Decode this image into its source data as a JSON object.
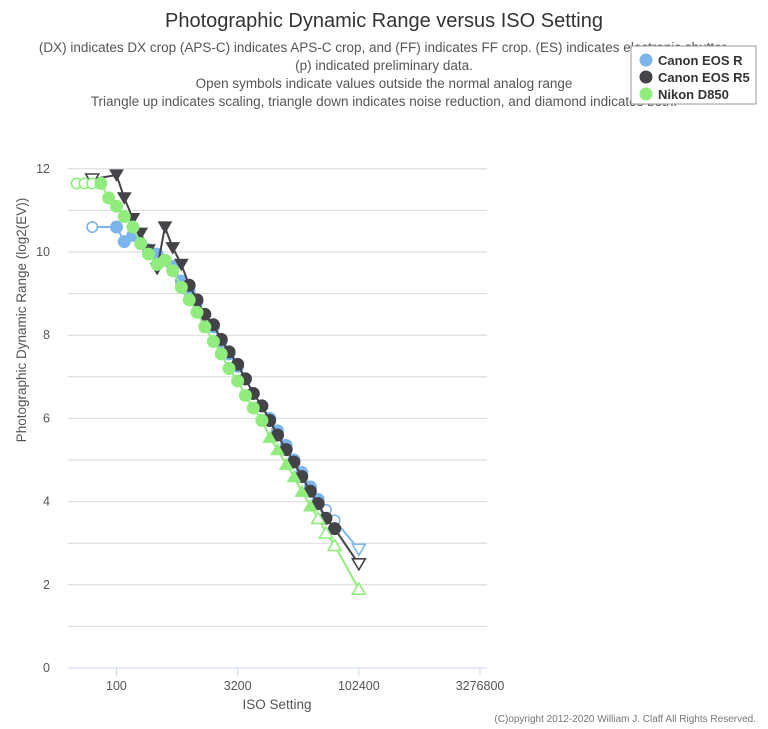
{
  "chart_data": {
    "type": "line",
    "title": "Photographic Dynamic Range versus ISO Setting",
    "subtitle_lines": [
      "(DX) indicates DX crop (APS-C) indicates APS-C crop, and (FF) indicates FF crop. (ES) indicates electronic shutter.",
      "(p) indicated preliminary data.",
      "Open symbols indicate values outside the normal analog range",
      "Triangle up indicates scaling, triangle down indicates noise reduction, and diamond indicates both."
    ],
    "xlabel": "ISO Setting",
    "ylabel": "Photographic Dynamic Range (log2(EV))",
    "x_scale": "log2",
    "xlim": [
      25,
      4000000
    ],
    "ylim": [
      0,
      12.5
    ],
    "x_ticks": [
      100,
      3200,
      102400,
      3276800
    ],
    "x_tick_labels": [
      "100",
      "3200",
      "102400",
      "3276800"
    ],
    "y_ticks": [
      0,
      2,
      4,
      6,
      8,
      10,
      12
    ],
    "y_tick_labels": [
      "0",
      "2",
      "4",
      "6",
      "8",
      "10",
      "12"
    ],
    "grid": true,
    "legend_position": "top-right",
    "credit": "(C)opyright 2012-2020 William J. Claff All Rights Reserved.",
    "series": [
      {
        "name": "Canon EOS R",
        "color": "#7cb5ec",
        "points": [
          {
            "x": 50,
            "y": 10.6,
            "m": "open-circle"
          },
          {
            "x": 100,
            "y": 10.6,
            "m": "circle"
          },
          {
            "x": 125,
            "y": 10.25,
            "m": "circle"
          },
          {
            "x": 160,
            "y": 10.4,
            "m": "circle"
          },
          {
            "x": 200,
            "y": 10.2,
            "m": "circle"
          },
          {
            "x": 250,
            "y": 10.05,
            "m": "circle"
          },
          {
            "x": 320,
            "y": 9.95,
            "m": "circle"
          },
          {
            "x": 400,
            "y": 9.8,
            "m": "circle"
          },
          {
            "x": 500,
            "y": 9.65,
            "m": "circle"
          },
          {
            "x": 640,
            "y": 9.3,
            "m": "circle"
          },
          {
            "x": 800,
            "y": 9.05,
            "m": "circle"
          },
          {
            "x": 1000,
            "y": 8.8,
            "m": "circle"
          },
          {
            "x": 1250,
            "y": 8.5,
            "m": "circle"
          },
          {
            "x": 1600,
            "y": 8.2,
            "m": "circle"
          },
          {
            "x": 2000,
            "y": 7.85,
            "m": "circle"
          },
          {
            "x": 2500,
            "y": 7.55,
            "m": "circle"
          },
          {
            "x": 3200,
            "y": 7.25,
            "m": "circle"
          },
          {
            "x": 4000,
            "y": 6.95,
            "m": "circle"
          },
          {
            "x": 5000,
            "y": 6.6,
            "m": "circle"
          },
          {
            "x": 6400,
            "y": 6.3,
            "m": "circle"
          },
          {
            "x": 8000,
            "y": 6.0,
            "m": "circle"
          },
          {
            "x": 10000,
            "y": 5.7,
            "m": "circle"
          },
          {
            "x": 12800,
            "y": 5.35,
            "m": "circle"
          },
          {
            "x": 16000,
            "y": 5.0,
            "m": "circle"
          },
          {
            "x": 20000,
            "y": 4.7,
            "m": "circle"
          },
          {
            "x": 25600,
            "y": 4.35,
            "m": "circle"
          },
          {
            "x": 32000,
            "y": 4.05,
            "m": "circle"
          },
          {
            "x": 40000,
            "y": 3.8,
            "m": "open-circle"
          },
          {
            "x": 51200,
            "y": 3.55,
            "m": "open-circle"
          },
          {
            "x": 102400,
            "y": 2.85,
            "m": "open-triangle-down"
          }
        ]
      },
      {
        "name": "Canon EOS R5",
        "color": "#434348",
        "points": [
          {
            "x": 50,
            "y": 11.75,
            "m": "open-triangle-down"
          },
          {
            "x": 100,
            "y": 11.85,
            "m": "triangle-down"
          },
          {
            "x": 125,
            "y": 11.3,
            "m": "triangle-down"
          },
          {
            "x": 160,
            "y": 10.8,
            "m": "triangle-down"
          },
          {
            "x": 200,
            "y": 10.45,
            "m": "triangle-down"
          },
          {
            "x": 250,
            "y": 10.05,
            "m": "triangle-down"
          },
          {
            "x": 320,
            "y": 9.6,
            "m": "triangle-down"
          },
          {
            "x": 400,
            "y": 10.6,
            "m": "triangle-down"
          },
          {
            "x": 500,
            "y": 10.1,
            "m": "triangle-down"
          },
          {
            "x": 640,
            "y": 9.7,
            "m": "triangle-down"
          },
          {
            "x": 800,
            "y": 9.2,
            "m": "circle"
          },
          {
            "x": 1000,
            "y": 8.85,
            "m": "circle"
          },
          {
            "x": 1250,
            "y": 8.5,
            "m": "circle"
          },
          {
            "x": 1600,
            "y": 8.25,
            "m": "circle"
          },
          {
            "x": 2000,
            "y": 7.9,
            "m": "circle"
          },
          {
            "x": 2500,
            "y": 7.6,
            "m": "circle"
          },
          {
            "x": 3200,
            "y": 7.3,
            "m": "circle"
          },
          {
            "x": 4000,
            "y": 6.95,
            "m": "circle"
          },
          {
            "x": 5000,
            "y": 6.6,
            "m": "circle"
          },
          {
            "x": 6400,
            "y": 6.3,
            "m": "circle"
          },
          {
            "x": 8000,
            "y": 5.95,
            "m": "circle"
          },
          {
            "x": 10000,
            "y": 5.6,
            "m": "circle"
          },
          {
            "x": 12800,
            "y": 5.25,
            "m": "circle"
          },
          {
            "x": 16000,
            "y": 4.95,
            "m": "circle"
          },
          {
            "x": 20000,
            "y": 4.6,
            "m": "circle"
          },
          {
            "x": 25600,
            "y": 4.25,
            "m": "circle"
          },
          {
            "x": 32000,
            "y": 3.95,
            "m": "circle"
          },
          {
            "x": 40000,
            "y": 3.6,
            "m": "circle"
          },
          {
            "x": 51200,
            "y": 3.35,
            "m": "circle"
          },
          {
            "x": 102400,
            "y": 2.5,
            "m": "open-triangle-down"
          }
        ]
      },
      {
        "name": "Nikon D850",
        "color": "#90ed7d",
        "points": [
          {
            "x": 32,
            "y": 11.65,
            "m": "open-circle"
          },
          {
            "x": 40,
            "y": 11.65,
            "m": "open-circle"
          },
          {
            "x": 50,
            "y": 11.65,
            "m": "open-circle"
          },
          {
            "x": 64,
            "y": 11.65,
            "m": "circle"
          },
          {
            "x": 80,
            "y": 11.3,
            "m": "circle"
          },
          {
            "x": 100,
            "y": 11.1,
            "m": "circle"
          },
          {
            "x": 125,
            "y": 10.85,
            "m": "circle"
          },
          {
            "x": 160,
            "y": 10.6,
            "m": "circle"
          },
          {
            "x": 200,
            "y": 10.2,
            "m": "circle"
          },
          {
            "x": 250,
            "y": 9.95,
            "m": "circle"
          },
          {
            "x": 320,
            "y": 9.7,
            "m": "circle"
          },
          {
            "x": 400,
            "y": 9.8,
            "m": "circle"
          },
          {
            "x": 500,
            "y": 9.55,
            "m": "circle"
          },
          {
            "x": 640,
            "y": 9.15,
            "m": "circle"
          },
          {
            "x": 800,
            "y": 8.85,
            "m": "circle"
          },
          {
            "x": 1000,
            "y": 8.55,
            "m": "circle"
          },
          {
            "x": 1250,
            "y": 8.2,
            "m": "circle"
          },
          {
            "x": 1600,
            "y": 7.85,
            "m": "circle"
          },
          {
            "x": 2000,
            "y": 7.55,
            "m": "circle"
          },
          {
            "x": 2500,
            "y": 7.2,
            "m": "circle"
          },
          {
            "x": 3200,
            "y": 6.9,
            "m": "circle"
          },
          {
            "x": 4000,
            "y": 6.55,
            "m": "circle"
          },
          {
            "x": 5000,
            "y": 6.25,
            "m": "circle"
          },
          {
            "x": 6400,
            "y": 5.95,
            "m": "circle"
          },
          {
            "x": 8000,
            "y": 5.55,
            "m": "triangle-up"
          },
          {
            "x": 10000,
            "y": 5.25,
            "m": "triangle-up"
          },
          {
            "x": 12800,
            "y": 4.9,
            "m": "triangle-up"
          },
          {
            "x": 16000,
            "y": 4.6,
            "m": "triangle-up"
          },
          {
            "x": 20000,
            "y": 4.25,
            "m": "triangle-up"
          },
          {
            "x": 25600,
            "y": 3.9,
            "m": "triangle-up"
          },
          {
            "x": 32000,
            "y": 3.6,
            "m": "open-triangle-up"
          },
          {
            "x": 40000,
            "y": 3.25,
            "m": "open-triangle-up"
          },
          {
            "x": 51200,
            "y": 2.95,
            "m": "open-triangle-up"
          },
          {
            "x": 102400,
            "y": 1.9,
            "m": "open-triangle-up"
          }
        ]
      }
    ]
  }
}
